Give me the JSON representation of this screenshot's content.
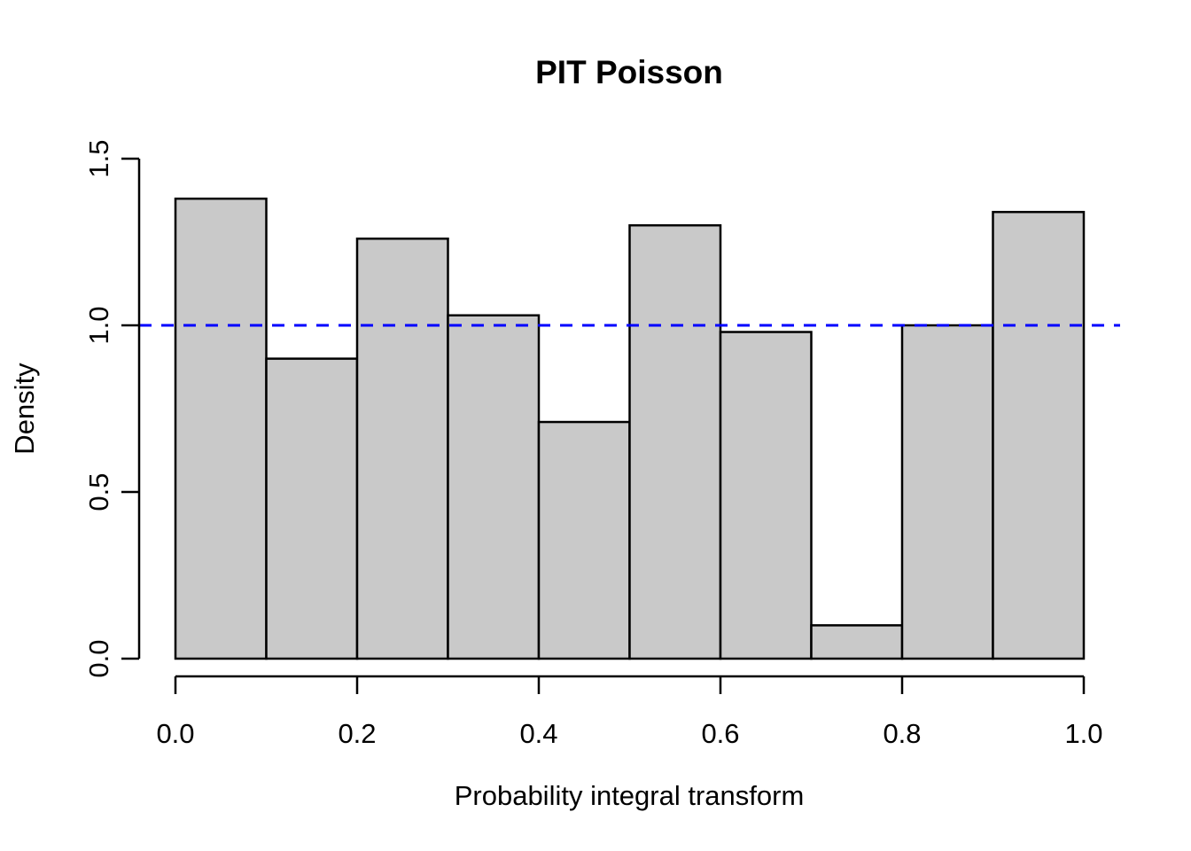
{
  "chart_data": {
    "type": "bar",
    "subtype": "histogram",
    "title": "PIT Poisson",
    "xlabel": "Probability integral transform",
    "ylabel": "Density",
    "bin_edges": [
      0.0,
      0.1,
      0.2,
      0.3,
      0.4,
      0.5,
      0.6,
      0.7,
      0.8,
      0.9,
      1.0
    ],
    "values": [
      1.38,
      0.9,
      1.26,
      1.03,
      0.71,
      1.3,
      0.98,
      0.1,
      1.0,
      1.34
    ],
    "x_ticks": [
      0.0,
      0.2,
      0.4,
      0.6,
      0.8,
      1.0
    ],
    "x_tick_labels": [
      "0.0",
      "0.2",
      "0.4",
      "0.6",
      "0.8",
      "1.0"
    ],
    "y_ticks": [
      0.0,
      0.5,
      1.0,
      1.5
    ],
    "y_tick_labels": [
      "0.0",
      "0.5",
      "1.0",
      "1.5"
    ],
    "xlim": [
      0.0,
      1.0
    ],
    "ylim": [
      0.0,
      1.5
    ],
    "grid": false,
    "legend": null,
    "reference_line": {
      "y": 1.0,
      "style": "dashed",
      "color": "#0000ff"
    },
    "colors": {
      "bar_fill": "#c9c9c9",
      "bar_border": "#000000",
      "axis": "#000000",
      "text": "#000000",
      "background": "#ffffff"
    }
  }
}
